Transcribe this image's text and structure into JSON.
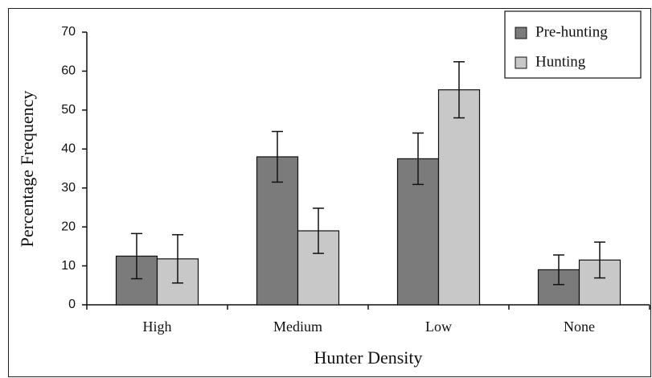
{
  "chart_data": {
    "type": "bar",
    "xlabel": "Hunter Density",
    "ylabel": "Percentage Frequency",
    "categories": [
      "High",
      "Medium",
      "Low",
      "None"
    ],
    "series": [
      {
        "name": "Pre-hunting",
        "color": "#7b7b7b",
        "values": [
          12.5,
          38,
          37.5,
          9
        ],
        "errors": [
          5.8,
          6.5,
          6.6,
          3.8
        ]
      },
      {
        "name": "Hunting",
        "color": "#c8c8c8",
        "values": [
          11.8,
          19,
          55.2,
          11.5
        ],
        "errors": [
          6.2,
          5.8,
          7.2,
          4.6
        ]
      }
    ],
    "ylim": [
      0,
      70
    ],
    "yticks": [
      0,
      10,
      20,
      30,
      40,
      50,
      60,
      70
    ],
    "legend": "upper right"
  }
}
